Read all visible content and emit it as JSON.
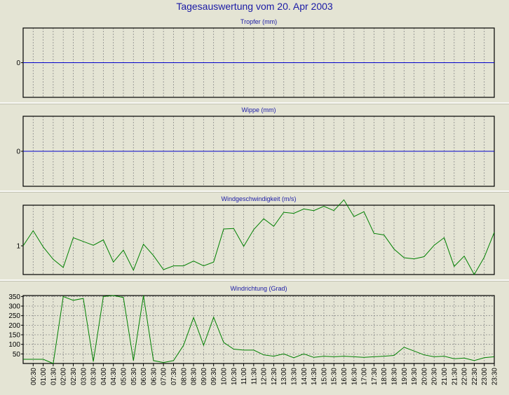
{
  "title": "Tagesauswertung vom 20. Apr 2003",
  "colors": {
    "background": "#e4e4d4",
    "title_text": "#1a1aa6",
    "zero_line": "#0000cc",
    "wind_line": "#008000",
    "grid": "#8a8a8a",
    "axis": "#000000",
    "separator": "#ffffff"
  },
  "x_ticks": [
    "00:30",
    "01:00",
    "01:30",
    "02:00",
    "02:30",
    "03:00",
    "03:30",
    "04:00",
    "04:30",
    "05:00",
    "05:30",
    "06:00",
    "06:30",
    "07:00",
    "07:30",
    "08:00",
    "08:30",
    "09:00",
    "09:30",
    "10:00",
    "10:30",
    "11:00",
    "11:30",
    "12:00",
    "12:30",
    "13:00",
    "13:30",
    "14:00",
    "14:30",
    "15:00",
    "15:30",
    "16:00",
    "16:30",
    "17:00",
    "17:30",
    "18:00",
    "18:30",
    "19:00",
    "19:30",
    "20:00",
    "20:30",
    "21:00",
    "21:30",
    "22:00",
    "22:30",
    "23:00",
    "23:30"
  ],
  "chart_data": [
    {
      "type": "line",
      "title": "Tropfer (mm)",
      "y_ticks": [
        "0"
      ],
      "ylim": [
        -1,
        1
      ],
      "grid": true,
      "series": [
        {
          "values": [
            0,
            0,
            0,
            0,
            0,
            0,
            0,
            0,
            0,
            0,
            0,
            0,
            0,
            0,
            0,
            0,
            0,
            0,
            0,
            0,
            0,
            0,
            0,
            0,
            0,
            0,
            0,
            0,
            0,
            0,
            0,
            0,
            0,
            0,
            0,
            0,
            0,
            0,
            0,
            0,
            0,
            0,
            0,
            0,
            0,
            0,
            0,
            0
          ]
        }
      ]
    },
    {
      "type": "line",
      "title": "Wippe (mm)",
      "y_ticks": [
        "0"
      ],
      "ylim": [
        -1,
        1
      ],
      "grid": true,
      "series": [
        {
          "values": [
            0,
            0,
            0,
            0,
            0,
            0,
            0,
            0,
            0,
            0,
            0,
            0,
            0,
            0,
            0,
            0,
            0,
            0,
            0,
            0,
            0,
            0,
            0,
            0,
            0,
            0,
            0,
            0,
            0,
            0,
            0,
            0,
            0,
            0,
            0,
            0,
            0,
            0,
            0,
            0,
            0,
            0,
            0,
            0,
            0,
            0,
            0,
            0
          ]
        }
      ]
    },
    {
      "type": "line",
      "title": "Windgeschwindigkeit (m/s)",
      "y_ticks": [
        "1"
      ],
      "ylim": [
        0.47,
        1.75
      ],
      "grid": true,
      "series": [
        {
          "values": [
            1.0,
            1.28,
            0.98,
            0.75,
            0.6,
            1.15,
            1.08,
            1.01,
            1.11,
            0.7,
            0.92,
            0.55,
            1.03,
            0.82,
            0.56,
            0.63,
            0.63,
            0.72,
            0.63,
            0.7,
            1.31,
            1.32,
            0.99,
            1.3,
            1.5,
            1.36,
            1.62,
            1.6,
            1.68,
            1.65,
            1.73,
            1.65,
            1.85,
            1.54,
            1.63,
            1.23,
            1.2,
            0.94,
            0.78,
            0.76,
            0.8,
            1.01,
            1.15,
            0.62,
            0.81,
            0.47,
            0.79,
            1.25
          ]
        }
      ]
    },
    {
      "type": "line",
      "title": "Windrichtung (Grad)",
      "y_ticks": [
        "50",
        "100",
        "150",
        "200",
        "250",
        "300",
        "350"
      ],
      "ylim": [
        0,
        355
      ],
      "grid": true,
      "series": [
        {
          "values": [
            22,
            22,
            22,
            0,
            350,
            330,
            340,
            10,
            350,
            355,
            345,
            15,
            355,
            15,
            5,
            15,
            95,
            240,
            95,
            242,
            110,
            75,
            70,
            70,
            45,
            38,
            50,
            30,
            50,
            32,
            38,
            35,
            38,
            35,
            32,
            35,
            38,
            42,
            85,
            65,
            45,
            35,
            38,
            25,
            28,
            15,
            30,
            35
          ]
        }
      ]
    }
  ]
}
